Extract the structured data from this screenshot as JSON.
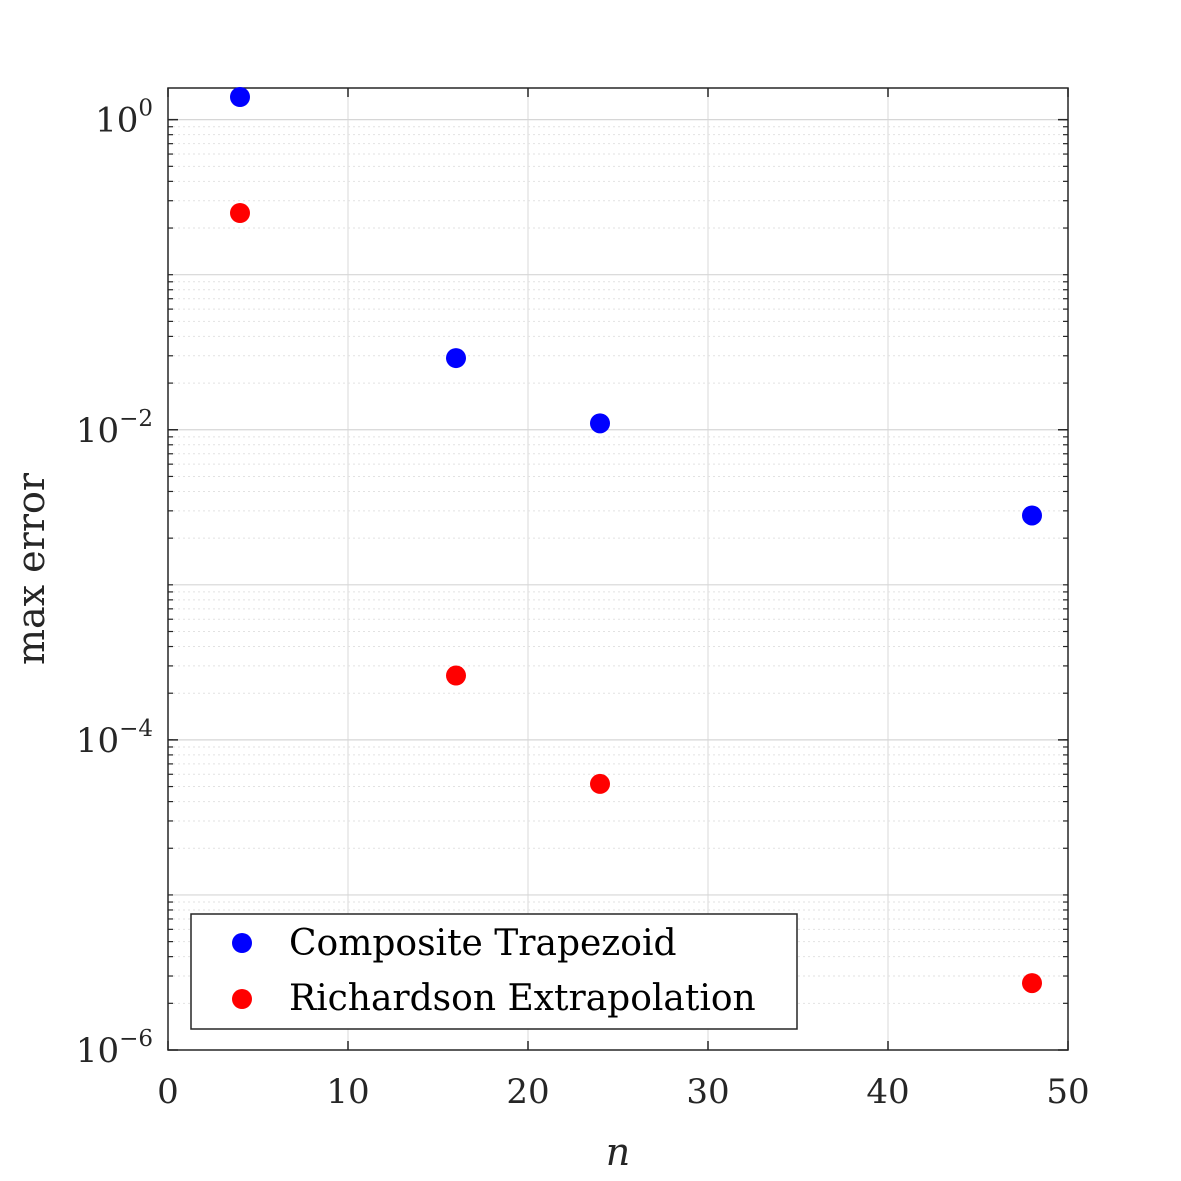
{
  "chart_data": {
    "type": "scatter",
    "title": "",
    "xlabel": "n",
    "ylabel": "max error",
    "xlim": [
      0,
      50
    ],
    "ylim": [
      1e-06,
      1.6
    ],
    "yscale": "log",
    "grid": true,
    "legend_position": "bottom-left",
    "x_ticks": [
      0,
      10,
      20,
      30,
      40,
      50
    ],
    "y_ticks": [
      {
        "value": 1,
        "base": "10",
        "exp": "0"
      },
      {
        "value": 0.01,
        "base": "10",
        "exp": "−2"
      },
      {
        "value": 0.0001,
        "base": "10",
        "exp": "−4"
      },
      {
        "value": 1e-06,
        "base": "10",
        "exp": "−6"
      }
    ],
    "series": [
      {
        "name": "Composite Trapezoid",
        "color": "#0000ff",
        "x": [
          4,
          16,
          24,
          48
        ],
        "y": [
          1.4,
          0.029,
          0.011,
          0.0028
        ]
      },
      {
        "name": "Richardson Extrapolation",
        "color": "#ff0000",
        "x": [
          4,
          16,
          24,
          48
        ],
        "y": [
          0.25,
          0.00026,
          5.2e-05,
          2.7e-06
        ]
      }
    ]
  }
}
